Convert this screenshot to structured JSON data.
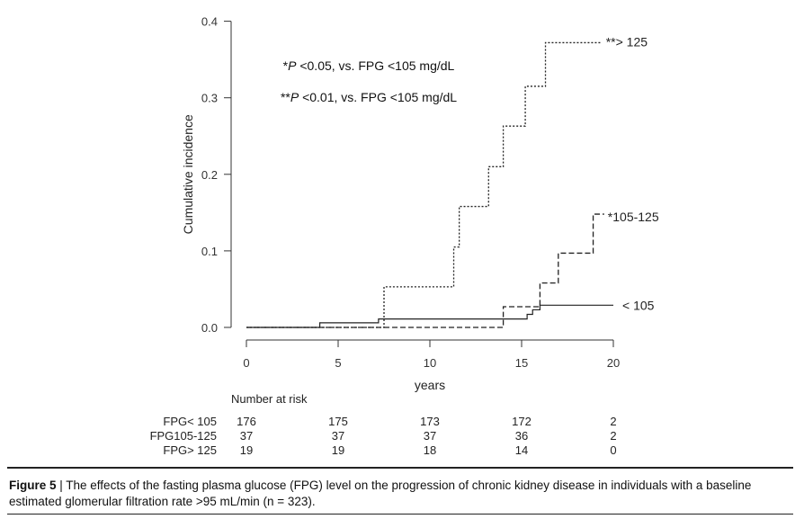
{
  "chart_data": {
    "type": "line",
    "subtype": "step",
    "ylabel": "Cumulative incidence",
    "xlabel": "years",
    "xlim": [
      0,
      20
    ],
    "ylim": [
      0,
      0.4
    ],
    "xticks": [
      0,
      5,
      10,
      15,
      20
    ],
    "yticks": [
      0.0,
      0.1,
      0.2,
      0.3,
      0.4
    ],
    "xtick_labels": [
      "0",
      "5",
      "10",
      "15",
      "20"
    ],
    "ytick_labels": [
      "0.0",
      "0.1",
      "0.2",
      "0.3",
      "0.4"
    ],
    "annotations": [
      "*P <0.05, vs. FPG <105 mg/dL",
      "**P <0.01, vs. FPG <105 mg/dL"
    ],
    "series": [
      {
        "name": "< 105",
        "style": "solid",
        "x": [
          0,
          4,
          7.2,
          15.3,
          15.6,
          16,
          20
        ],
        "y": [
          0.0,
          0.006,
          0.011,
          0.017,
          0.023,
          0.029,
          0.029
        ]
      },
      {
        "name": "*105-125",
        "style": "dashed",
        "x": [
          0,
          14,
          15.5,
          16,
          17,
          18.9,
          19.5
        ],
        "y": [
          0.0,
          0.027,
          0.027,
          0.058,
          0.097,
          0.148,
          0.148
        ]
      },
      {
        "name": "**> 125",
        "style": "dotted",
        "x": [
          0,
          7.5,
          11.3,
          11.6,
          13.2,
          14,
          15.2,
          16.3,
          19.3
        ],
        "y": [
          0.0,
          0.053,
          0.105,
          0.158,
          0.21,
          0.263,
          0.315,
          0.372,
          0.372
        ]
      }
    ],
    "risk_table": {
      "title": "Number at risk",
      "rows": [
        {
          "label": "FPG< 105",
          "values": [
            "176",
            "175",
            "173",
            "172",
            "2"
          ]
        },
        {
          "label": "FPG105-125",
          "values": [
            "37",
            "37",
            "37",
            "36",
            "2"
          ]
        },
        {
          "label": "FPG> 125",
          "values": [
            "19",
            "19",
            "18",
            "14",
            "0"
          ]
        }
      ]
    }
  },
  "caption": {
    "figure_label": "Figure 5",
    "separator": " | ",
    "text": "The effects of the fasting plasma glucose (FPG) level on the progression of chronic kidney disease in individuals with a baseline estimated glomerular filtration rate >95 mL/min (n = 323)."
  }
}
